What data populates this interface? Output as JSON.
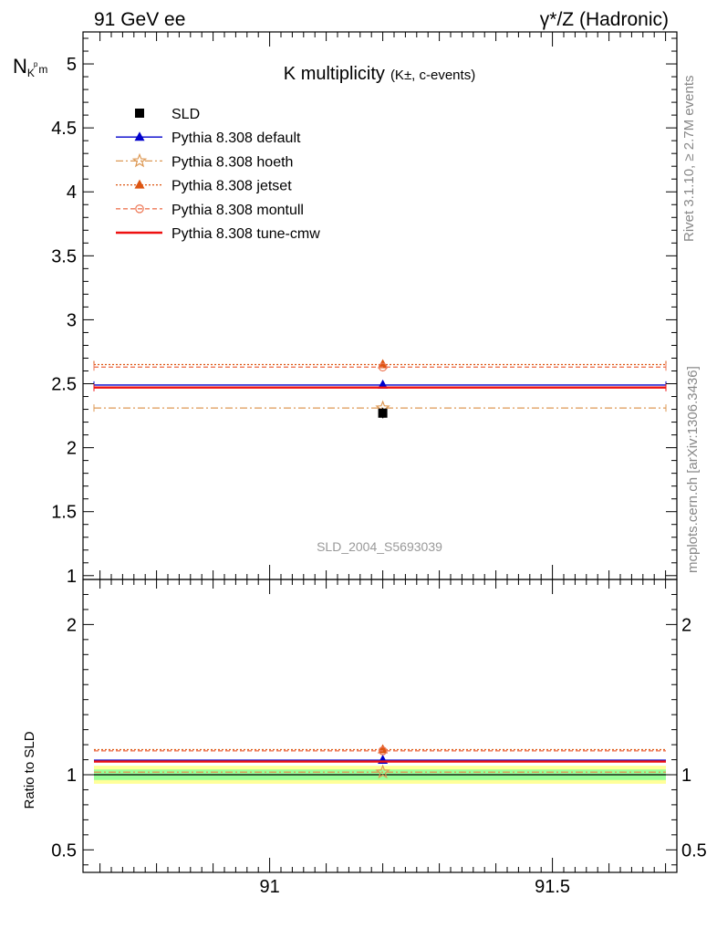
{
  "header": {
    "left": "91 GeV ee",
    "right": "γ*/Z (Hadronic)"
  },
  "side": {
    "rivet": "Rivet 3.1.10, ≥ 2.7M events",
    "mcplots": "mcplots.cern.ch [arXiv:1306.3436]"
  },
  "chart_data": [
    {
      "type": "scatter",
      "title_main": "K multiplicity",
      "title_sub": "(K±, c-events)",
      "ylabel_base": "N",
      "ylabel_sub": "K",
      "ylabel_sub2": "m",
      "ylabel_sup": "p",
      "watermark": "SLD_2004_S5693039",
      "xlim": [
        90.67,
        91.72
      ],
      "ylim": [
        0.97,
        5.25
      ],
      "yticks": [
        {
          "v": 1,
          "label": "1"
        },
        {
          "v": 1.5,
          "label": "1.5"
        },
        {
          "v": 2,
          "label": "2"
        },
        {
          "v": 2.5,
          "label": "2.5"
        },
        {
          "v": 3,
          "label": "3"
        },
        {
          "v": 3.5,
          "label": "3.5"
        },
        {
          "v": 4,
          "label": "4"
        },
        {
          "v": 4.5,
          "label": "4.5"
        },
        {
          "v": 5,
          "label": "5"
        }
      ],
      "data": {
        "name": "SLD",
        "x": 91.2,
        "y": 2.27,
        "err": 0.04,
        "color": "#000000"
      },
      "series": [
        {
          "name": "Pythia 8.308 default",
          "y": 2.49,
          "color": "#0000cc",
          "dash": "",
          "marker": "triangle",
          "width": 1.3
        },
        {
          "name": "Pythia 8.308 hoeth",
          "y": 2.31,
          "color": "#dd9955",
          "dash": "8 3 2 3",
          "marker": "star",
          "width": 1.3
        },
        {
          "name": "Pythia 8.308 jetset",
          "y": 2.65,
          "color": "#dd5511",
          "dash": "2 2",
          "marker": "triangle",
          "width": 1.3
        },
        {
          "name": "Pythia 8.308 montull",
          "y": 2.63,
          "color": "#ee7755",
          "dash": "5 3",
          "marker": "circle-open",
          "width": 1.3
        },
        {
          "name": "Pythia 8.308 tune-cmw",
          "y": 2.47,
          "color": "#ee1111",
          "dash": "",
          "marker": "",
          "width": 2.4
        }
      ]
    },
    {
      "type": "scatter",
      "ylabel": "Ratio to SLD",
      "xlim": [
        90.67,
        91.72
      ],
      "ylim": [
        0.35,
        2.3
      ],
      "yticks": [
        {
          "v": 0.5,
          "label": "0.5"
        },
        {
          "v": 1,
          "label": "1"
        },
        {
          "v": 2,
          "label": "2"
        }
      ],
      "xticks": [
        {
          "v": 91,
          "label": "91"
        },
        {
          "v": 91.5,
          "label": "91.5"
        }
      ],
      "bands": [
        {
          "lo": 0.94,
          "hi": 1.06,
          "color": "#ffff99"
        },
        {
          "lo": 0.965,
          "hi": 1.035,
          "color": "#99ff99"
        }
      ],
      "ratios": [
        1.097,
        1.017,
        1.167,
        1.159,
        1.088
      ]
    }
  ]
}
